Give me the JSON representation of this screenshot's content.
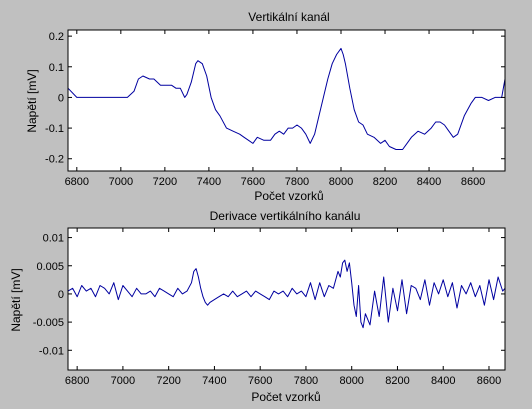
{
  "figure": {
    "background": "#c0c0c0",
    "plot_background": "#ffffff",
    "line_color": "#0000a0"
  },
  "chart_data": [
    {
      "type": "line",
      "title": "Vertikální kanál",
      "xlabel": "Počet vzorků",
      "ylabel": "Napětí [mV]",
      "xlim": [
        6760,
        8745
      ],
      "ylim": [
        -0.24,
        0.22
      ],
      "xticks": [
        6800,
        7000,
        7200,
        7400,
        7600,
        7800,
        8000,
        8200,
        8400,
        8600
      ],
      "xtick_labels": [
        "6800",
        "7000",
        "7200",
        "7400",
        "7600",
        "7800",
        "8000",
        "8200",
        "8400",
        "8600"
      ],
      "yticks": [
        0.2,
        0.1,
        0,
        -0.1,
        -0.2
      ],
      "ytick_labels": [
        "0.2",
        "0.1",
        "0",
        "-0.1",
        "-0.2"
      ],
      "grid": false,
      "series": [
        {
          "x": [
            6760,
            6800,
            6850,
            6900,
            6950,
            7000,
            7030,
            7060,
            7080,
            7100,
            7130,
            7150,
            7180,
            7200,
            7230,
            7250,
            7270,
            7290,
            7300,
            7320,
            7340,
            7350,
            7370,
            7390,
            7410,
            7430,
            7450,
            7480,
            7510,
            7540,
            7560,
            7580,
            7600,
            7620,
            7650,
            7680,
            7700,
            7720,
            7740,
            7760,
            7780,
            7800,
            7820,
            7840,
            7860,
            7880,
            7900,
            7920,
            7940,
            7960,
            7980,
            8000,
            8010,
            8020,
            8040,
            8060,
            8080,
            8100,
            8120,
            8150,
            8180,
            8200,
            8220,
            8250,
            8280,
            8300,
            8320,
            8350,
            8380,
            8410,
            8430,
            8450,
            8470,
            8490,
            8510,
            8530,
            8560,
            8590,
            8610,
            8640,
            8670,
            8700,
            8730,
            8745
          ],
          "y": [
            0.03,
            0.0,
            0.0,
            0.0,
            0.0,
            0.0,
            0.0,
            0.02,
            0.06,
            0.07,
            0.06,
            0.06,
            0.04,
            0.04,
            0.04,
            0.03,
            0.03,
            0.0,
            0.01,
            0.05,
            0.11,
            0.12,
            0.11,
            0.07,
            0.0,
            -0.04,
            -0.06,
            -0.1,
            -0.11,
            -0.12,
            -0.13,
            -0.14,
            -0.15,
            -0.13,
            -0.14,
            -0.14,
            -0.12,
            -0.11,
            -0.12,
            -0.1,
            -0.1,
            -0.09,
            -0.1,
            -0.12,
            -0.15,
            -0.12,
            -0.06,
            -0.0,
            0.06,
            0.11,
            0.14,
            0.16,
            0.14,
            0.11,
            0.03,
            -0.04,
            -0.08,
            -0.09,
            -0.12,
            -0.13,
            -0.15,
            -0.14,
            -0.16,
            -0.17,
            -0.17,
            -0.15,
            -0.13,
            -0.11,
            -0.12,
            -0.1,
            -0.08,
            -0.08,
            -0.09,
            -0.11,
            -0.13,
            -0.12,
            -0.06,
            -0.02,
            0.0,
            0.0,
            -0.01,
            0.0,
            0.0,
            0.06
          ]
        }
      ]
    },
    {
      "type": "line",
      "title": "Derivace vertikálního kanálu",
      "xlabel": "Počet vzorků",
      "ylabel": "Napětí [mV]",
      "xlim": [
        6760,
        8670
      ],
      "ylim": [
        -0.0135,
        0.0117
      ],
      "xticks": [
        6800,
        7000,
        7200,
        7400,
        7600,
        7800,
        8000,
        8200,
        8400,
        8600
      ],
      "xtick_labels": [
        "6800",
        "7000",
        "7200",
        "7400",
        "7600",
        "7800",
        "8000",
        "8200",
        "8400",
        "8600"
      ],
      "yticks": [
        0.01,
        0.005,
        0,
        -0.005,
        -0.01
      ],
      "ytick_labels": [
        "0.01",
        "0.005",
        "0",
        "-0.005",
        "-0.01"
      ],
      "grid": false,
      "series": [
        {
          "x": [
            6760,
            6780,
            6800,
            6820,
            6840,
            6860,
            6880,
            6900,
            6920,
            6940,
            6960,
            6980,
            7000,
            7020,
            7040,
            7060,
            7080,
            7100,
            7120,
            7140,
            7160,
            7180,
            7200,
            7220,
            7240,
            7260,
            7280,
            7300,
            7310,
            7320,
            7330,
            7340,
            7350,
            7360,
            7370,
            7380,
            7400,
            7420,
            7440,
            7460,
            7480,
            7500,
            7520,
            7540,
            7560,
            7580,
            7600,
            7620,
            7640,
            7660,
            7680,
            7700,
            7720,
            7740,
            7760,
            7780,
            7800,
            7820,
            7840,
            7860,
            7880,
            7900,
            7920,
            7940,
            7950,
            7960,
            7970,
            7980,
            7990,
            8000,
            8010,
            8020,
            8030,
            8040,
            8050,
            8060,
            8080,
            8100,
            8120,
            8140,
            8160,
            8180,
            8200,
            8220,
            8240,
            8260,
            8280,
            8300,
            8320,
            8340,
            8360,
            8380,
            8400,
            8420,
            8440,
            8460,
            8480,
            8500,
            8520,
            8540,
            8560,
            8580,
            8600,
            8620,
            8640,
            8660,
            8670
          ],
          "y": [
            0.0005,
            0.001,
            -0.0005,
            0.0015,
            0.0005,
            0.001,
            -0.0005,
            0.0015,
            0.001,
            0.0,
            0.002,
            -0.001,
            0.0015,
            0.0005,
            -0.0005,
            0.001,
            0.0,
            0.0,
            0.0005,
            -0.0005,
            0.001,
            0.0005,
            0.0,
            -0.0005,
            0.001,
            0.0,
            0.0005,
            0.002,
            0.004,
            0.0045,
            0.003,
            0.001,
            -0.0005,
            -0.0015,
            -0.002,
            -0.0015,
            -0.001,
            -0.0005,
            0.0,
            -0.0005,
            0.0005,
            -0.0005,
            0.0,
            0.0005,
            -0.0005,
            0.0005,
            0.0,
            -0.0005,
            -0.001,
            0.0005,
            0.0,
            0.0005,
            -0.0005,
            0.001,
            0.0,
            0.0005,
            -0.0005,
            0.002,
            -0.001,
            0.002,
            -0.0005,
            0.0015,
            0.001,
            0.004,
            0.003,
            0.0055,
            0.006,
            0.004,
            0.0055,
            0.002,
            -0.002,
            -0.004,
            0.0015,
            -0.005,
            -0.006,
            -0.0035,
            -0.0055,
            0.0005,
            -0.004,
            0.003,
            -0.005,
            0.001,
            -0.003,
            0.0025,
            -0.0035,
            0.0015,
            0.001,
            -0.001,
            0.0025,
            -0.002,
            0.002,
            0.0,
            0.0025,
            -0.0005,
            0.002,
            -0.0025,
            0.0015,
            0.0,
            0.002,
            -0.0005,
            0.0015,
            -0.002,
            0.0025,
            -0.001,
            0.003,
            0.0005,
            0.001
          ]
        }
      ]
    }
  ]
}
